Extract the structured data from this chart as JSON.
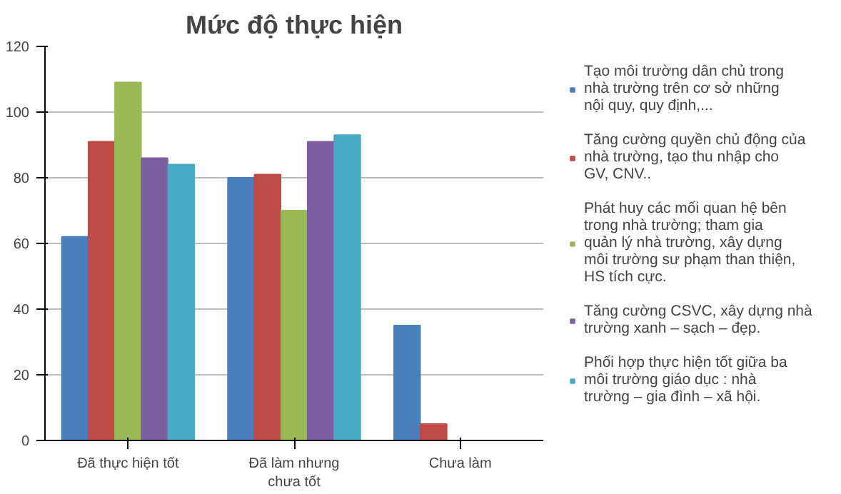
{
  "chart_data": {
    "type": "bar",
    "title": "Mức độ thực hiện",
    "categories": [
      "Đã thực hiện tốt",
      "Đã làm nhưng chưa tốt",
      "Chưa làm"
    ],
    "series": [
      {
        "name": "Tạo môi trường dân chủ trong nhà trường trên cơ sở những nội quy, quy định,...",
        "color": "#4a7ebb",
        "values": [
          62,
          80,
          35
        ]
      },
      {
        "name": "Tăng cường quyền chủ động của nhà trường, tạo thu nhập cho GV, CNV..",
        "color": "#be4b48",
        "values": [
          91,
          81,
          5
        ]
      },
      {
        "name": "Phát huy các mối quan hệ bên trong nhà trường; tham gia quản lý nhà trường, xây dựng môi trường sư phạm than thiện, HS tích cực.",
        "color": "#98b954",
        "values": [
          109,
          70,
          0
        ]
      },
      {
        "name": "Tăng cường CSVC, xây dựng nhà trường xanh – sạch – đẹp.",
        "color": "#7d60a0",
        "values": [
          86,
          91,
          0
        ]
      },
      {
        "name": "Phối hợp thực hiện tốt giữa ba môi trường giáo dục : nhà trường – gia đình – xã hội.",
        "color": "#46aac5",
        "values": [
          84,
          93,
          0
        ]
      }
    ],
    "ylim": [
      0,
      120
    ],
    "yticks": [
      0,
      20,
      40,
      60,
      80,
      100,
      120
    ],
    "grid": "y",
    "legend": "right"
  }
}
